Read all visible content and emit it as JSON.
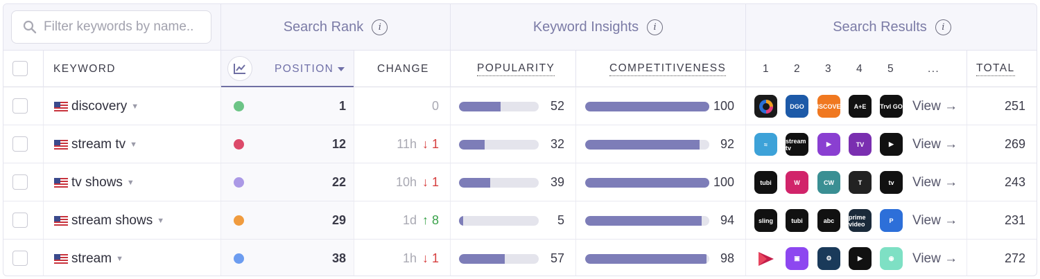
{
  "search": {
    "placeholder": "Filter keywords by name.."
  },
  "groups": {
    "search_rank": "Search Rank",
    "keyword_insights": "Keyword Insights",
    "search_results": "Search Results",
    "info_glyph": "i"
  },
  "columns": {
    "keyword": "KEYWORD",
    "position": "POSITION",
    "change": "CHANGE",
    "popularity": "POPULARITY",
    "competitiveness": "COMPETITIVENESS",
    "r1": "1",
    "r2": "2",
    "r3": "3",
    "r4": "4",
    "r5": "5",
    "more": "...",
    "total": "TOTAL"
  },
  "colors": {
    "accent": "#7d7db8",
    "down": "#d63d3d",
    "up": "#3aa24a"
  },
  "rows": [
    {
      "keyword": "discovery",
      "dot": "#6cc486",
      "position": "1",
      "change_time": "0",
      "change_dir": "",
      "change_val": "",
      "popularity": 52,
      "popularity_label": "52",
      "competitiveness": 100,
      "competitiveness_label": "100",
      "apps": [
        {
          "name": "discovery-plus-app-icon",
          "bg": "#1a1a1a",
          "label": ""
        },
        {
          "name": "discovery-go-app-icon",
          "bg": "#1d5aa8",
          "label": "DGO"
        },
        {
          "name": "discover-app-icon",
          "bg": "#f07820",
          "label": "DISCOVER"
        },
        {
          "name": "ae-app-icon",
          "bg": "#111111",
          "label": "A+E"
        },
        {
          "name": "travel-go-app-icon",
          "bg": "#111111",
          "label": "Trvl GO"
        }
      ],
      "view": "View →",
      "total": "251"
    },
    {
      "keyword": "stream tv",
      "dot": "#dc4a6a",
      "position": "12",
      "change_time": "11h",
      "change_dir": "down",
      "change_val": "↓ 1",
      "popularity": 32,
      "popularity_label": "32",
      "competitiveness": 92,
      "competitiveness_label": "92",
      "apps": [
        {
          "name": "stream-app-icon",
          "bg": "#3da2d8",
          "label": "≈"
        },
        {
          "name": "stream-tv-app-icon",
          "bg": "#111111",
          "label": "stream tv"
        },
        {
          "name": "purple-play-app-icon",
          "bg": "#8a3fd1",
          "label": "▶"
        },
        {
          "name": "freecable-tv-app-icon",
          "bg": "#7a2fb0",
          "label": "TV"
        },
        {
          "name": "xfinity-stream-app-icon",
          "bg": "#111111",
          "label": "▶"
        }
      ],
      "view": "View →",
      "total": "269"
    },
    {
      "keyword": "tv shows",
      "dot": "#ab99e6",
      "position": "22",
      "change_time": "10h",
      "change_dir": "down",
      "change_val": "↓ 1",
      "popularity": 39,
      "popularity_label": "39",
      "competitiveness": 100,
      "competitiveness_label": "100",
      "apps": [
        {
          "name": "tubi-app-icon",
          "bg": "#111111",
          "label": "tubi"
        },
        {
          "name": "heart-w-app-icon",
          "bg": "#d1246a",
          "label": "W"
        },
        {
          "name": "cw-app-icon",
          "bg": "#3a8f93",
          "label": "CW"
        },
        {
          "name": "t-app-icon",
          "bg": "#222222",
          "label": "T"
        },
        {
          "name": "apple-tv-app-icon",
          "bg": "#111111",
          "label": "tv"
        }
      ],
      "view": "View →",
      "total": "243"
    },
    {
      "keyword": "stream shows",
      "dot": "#f09b3e",
      "position": "29",
      "change_time": "1d",
      "change_dir": "up",
      "change_val": "↑ 8",
      "popularity": 5,
      "popularity_label": "5",
      "competitiveness": 94,
      "competitiveness_label": "94",
      "apps": [
        {
          "name": "sling-app-icon",
          "bg": "#111111",
          "label": "sling"
        },
        {
          "name": "tubi-app-icon",
          "bg": "#111111",
          "label": "tubi"
        },
        {
          "name": "abc-app-icon",
          "bg": "#111111",
          "label": "abc"
        },
        {
          "name": "prime-video-app-icon",
          "bg": "#1a2a3a",
          "label": "prime video"
        },
        {
          "name": "pluto-app-icon",
          "bg": "#2d6fd9",
          "label": "P"
        }
      ],
      "view": "View →",
      "total": "231"
    },
    {
      "keyword": "stream",
      "dot": "#6c9cf0",
      "position": "38",
      "change_time": "1h",
      "change_dir": "down",
      "change_val": "↓ 1",
      "popularity": 57,
      "popularity_label": "57",
      "competitiveness": 98,
      "competitiveness_label": "98",
      "apps": [
        {
          "name": "red-play-app-icon",
          "bg": "#ffffff",
          "label": ""
        },
        {
          "name": "twitch-app-icon",
          "bg": "#8d47f0",
          "label": "▣"
        },
        {
          "name": "steam-app-icon",
          "bg": "#1a3a5a",
          "label": "⚙"
        },
        {
          "name": "xfinity-app-icon",
          "bg": "#111111",
          "label": "▶"
        },
        {
          "name": "robot-app-icon",
          "bg": "#7ee0c4",
          "label": "◉"
        }
      ],
      "view": "View →",
      "total": "272"
    }
  ]
}
